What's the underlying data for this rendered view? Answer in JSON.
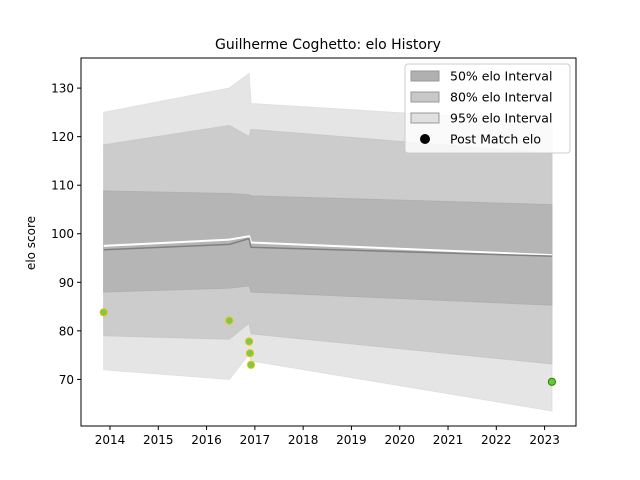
{
  "chart_data": {
    "type": "area",
    "title": "Guilherme Coghetto: elo History",
    "xlabel": "",
    "ylabel": "elo score",
    "xlim": [
      2013.4,
      2023.65
    ],
    "ylim": [
      60.4,
      136.2
    ],
    "x_ticks": [
      "2014",
      "2015",
      "2016",
      "2017",
      "2018",
      "2019",
      "2020",
      "2021",
      "2022",
      "2023"
    ],
    "y_ticks": [
      "70",
      "80",
      "90",
      "100",
      "110",
      "120",
      "130"
    ],
    "grid": false,
    "legend_position": "top-right",
    "legend": [
      {
        "label": "50% elo Interval",
        "kind": "patch",
        "color": "#b0b0b0"
      },
      {
        "label": "80% elo Interval",
        "kind": "patch",
        "color": "#c8c8c8"
      },
      {
        "label": "95% elo Interval",
        "kind": "patch",
        "color": "#e0e0e0"
      },
      {
        "label": "Post Match elo",
        "kind": "marker",
        "color": "#000000"
      }
    ],
    "x": [
      2013.87,
      2016.47,
      2016.88,
      2016.92,
      2023.15
    ],
    "bands": {
      "95": {
        "lower": [
          72.0,
          70.0,
          75.2,
          73.8,
          63.5
        ],
        "upper": [
          125.0,
          130.0,
          133.0,
          126.8,
          123.0
        ]
      },
      "80": {
        "lower": [
          79.0,
          78.3,
          81.6,
          79.4,
          73.2
        ],
        "upper": [
          118.3,
          122.3,
          120.0,
          121.5,
          116.5
        ]
      },
      "50": {
        "lower": [
          88.0,
          88.8,
          89.3,
          88.0,
          85.3
        ],
        "upper": [
          108.8,
          108.3,
          108.0,
          107.8,
          106.0
        ]
      }
    },
    "mean_line": [
      96.7,
      97.8,
      99.0,
      97.2,
      95.4
    ],
    "upper_white_line": [
      97.5,
      98.8,
      99.5,
      98.2,
      95.6
    ],
    "post_match_points": [
      {
        "x": 2013.87,
        "y": 83.8
      },
      {
        "x": 2016.47,
        "y": 82.1
      },
      {
        "x": 2016.88,
        "y": 77.8
      },
      {
        "x": 2016.9,
        "y": 75.4
      },
      {
        "x": 2016.92,
        "y": 73.0
      },
      {
        "x": 2023.15,
        "y": 69.5
      }
    ],
    "colors": {
      "band_50": "#b0b0b0",
      "band_80": "#c8c8c8",
      "band_95": "#e0e0e0",
      "mean_line": "#808080",
      "point_fill": "#7ec850",
      "point_edge": "#e8c400",
      "last_point_fill": "#66cc33"
    }
  }
}
